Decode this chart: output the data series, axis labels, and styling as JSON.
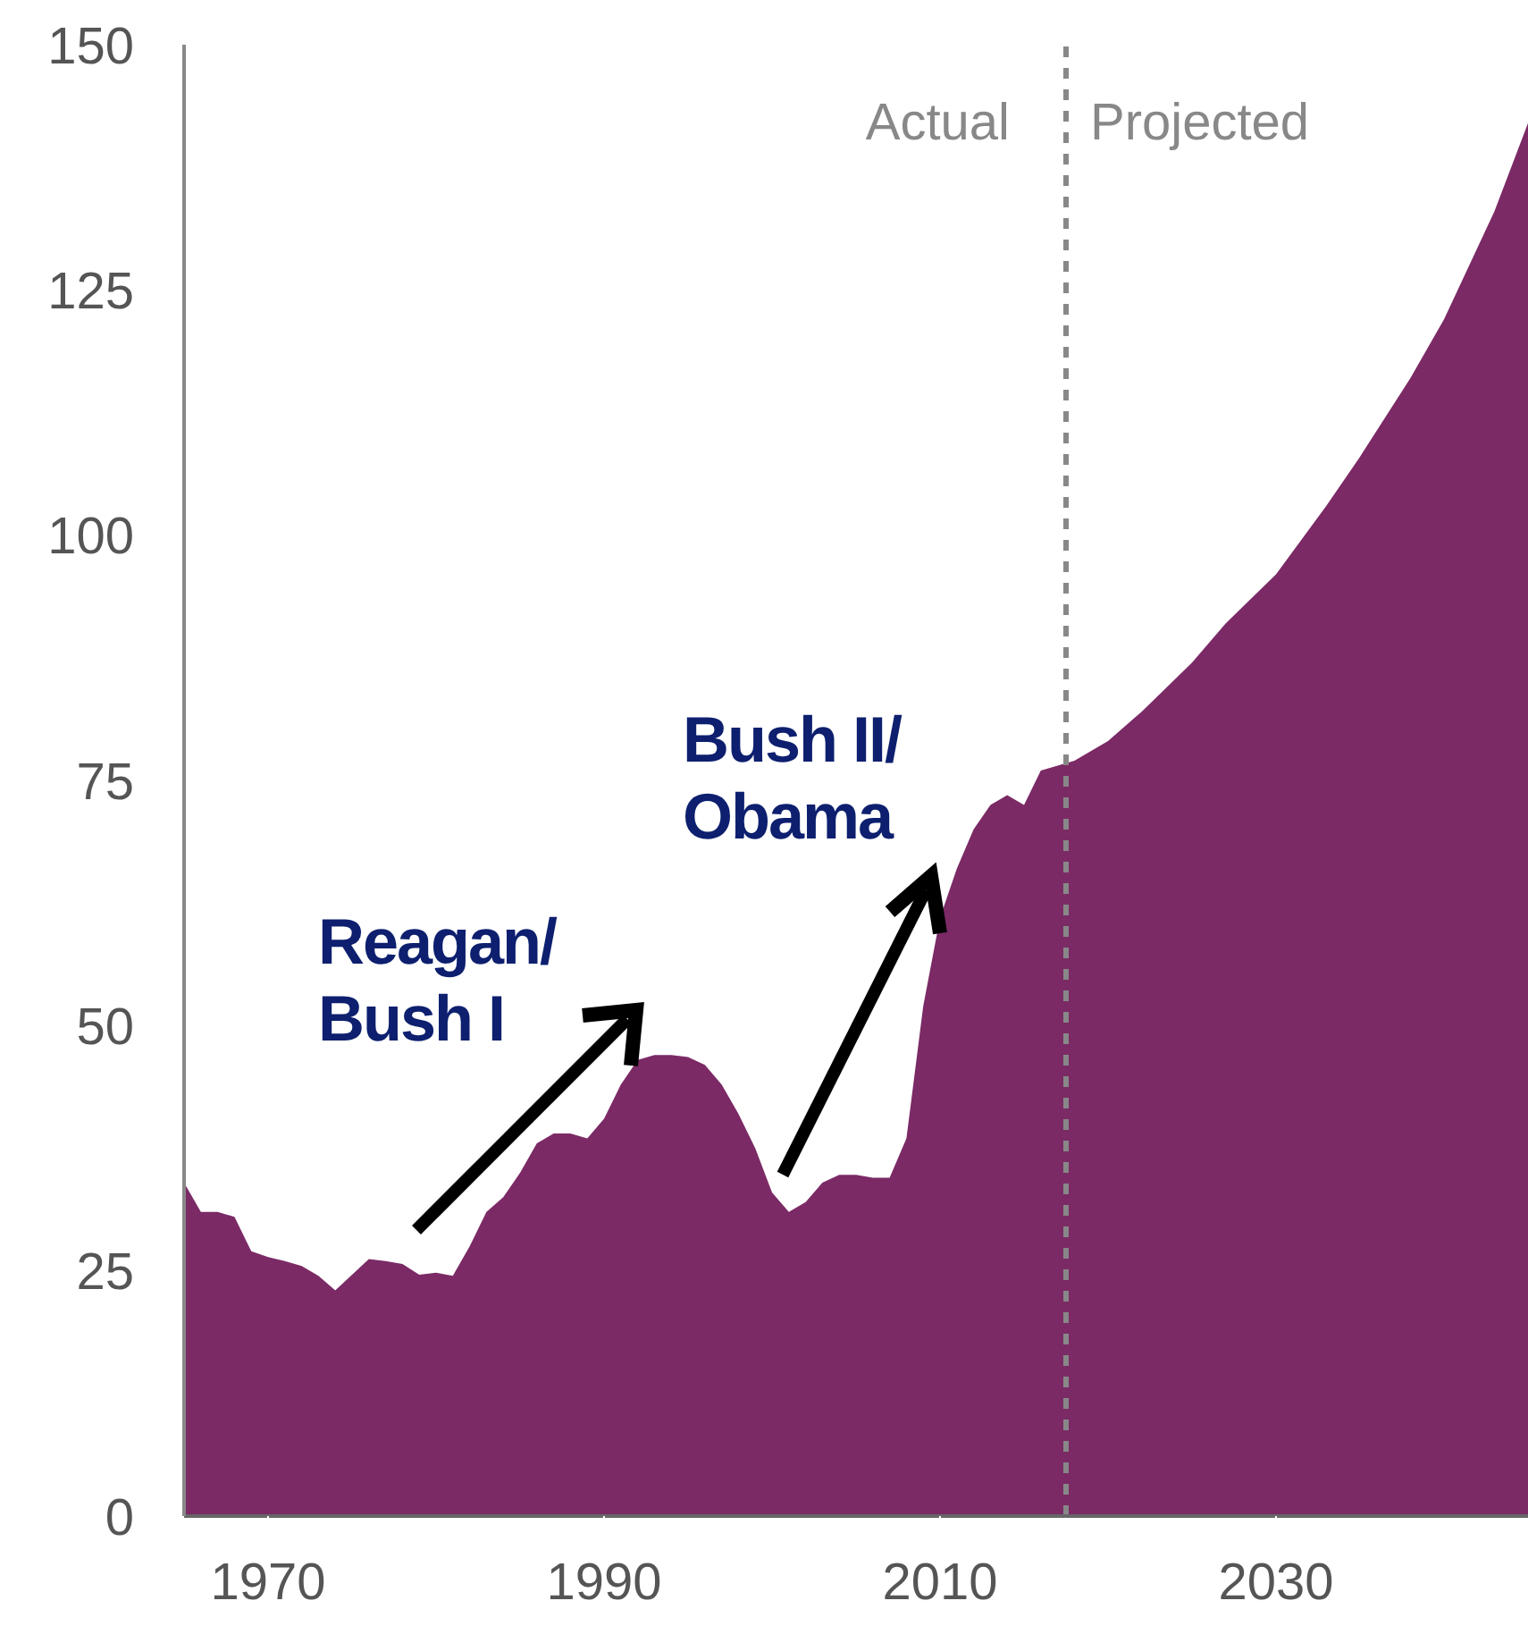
{
  "chart_data": {
    "type": "area",
    "color": "#7b2a66",
    "x": [
      1965,
      1966,
      1967,
      1968,
      1969,
      1970,
      1971,
      1972,
      1973,
      1974,
      1975,
      1976,
      1977,
      1978,
      1979,
      1980,
      1981,
      1982,
      1983,
      1984,
      1985,
      1986,
      1987,
      1988,
      1989,
      1990,
      1991,
      1992,
      1993,
      1994,
      1995,
      1996,
      1997,
      1998,
      1999,
      2000,
      2001,
      2002,
      2003,
      2004,
      2005,
      2006,
      2007,
      2008,
      2009,
      2010,
      2011,
      2012,
      2013,
      2014,
      2015,
      2016,
      2017,
      2018,
      2019,
      2020,
      2022,
      2025,
      2027,
      2030,
      2033,
      2035,
      2038,
      2040,
      2043,
      2045
    ],
    "values": [
      34,
      31,
      31,
      30.5,
      27,
      26.4,
      26,
      25.5,
      24.5,
      23,
      24.6,
      26.2,
      26,
      25.7,
      24.6,
      24.8,
      24.5,
      27.5,
      31,
      32.5,
      35,
      38,
      39,
      39,
      38.5,
      40.5,
      44,
      46.5,
      47,
      47,
      46.8,
      46,
      44,
      41,
      37.5,
      33,
      31,
      32,
      34,
      34.8,
      34.8,
      34.5,
      34.5,
      38.5,
      52,
      61,
      66,
      70,
      72.5,
      73.5,
      72.5,
      76,
      76.5,
      77,
      78,
      79,
      82,
      87,
      91,
      96,
      103,
      108,
      116,
      122,
      133,
      142
    ],
    "xlim": [
      1965,
      2045
    ],
    "xticks": [
      1970,
      1990,
      2010,
      2030
    ],
    "ylim": [
      0,
      150
    ],
    "yticks": [
      0,
      25,
      50,
      75,
      100,
      125,
      150
    ],
    "ref_lines": [
      {
        "axis": "x",
        "value": 2017.5,
        "label": null,
        "color": "#888888",
        "line_style": "dashed"
      }
    ],
    "annotations": [
      "Actual",
      "Projected",
      "Reagan/\nBush I",
      "Bush II/\nObama"
    ]
  }
}
